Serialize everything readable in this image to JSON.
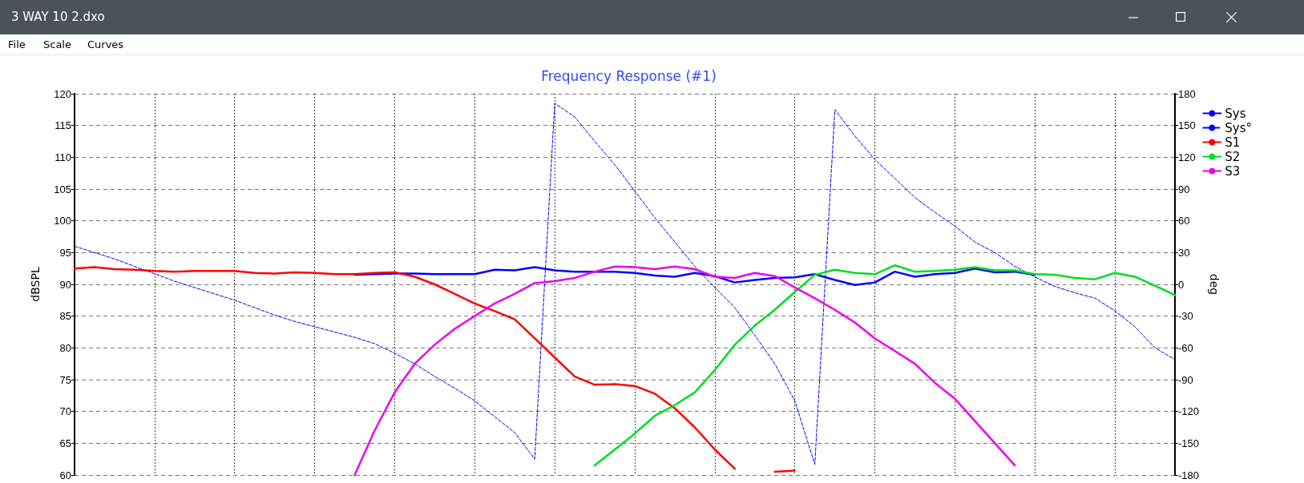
{
  "chart_data": {
    "type": "line",
    "title": "Frequency Response (#1)",
    "ylabel": "dBSPL",
    "y2label": "deg",
    "annotations": [
      "3 WAY 10 2.dxo",
      "File",
      "Scale",
      "Curves"
    ],
    "categories": [
      null,
      null,
      null,
      null,
      null,
      null,
      null,
      null,
      null,
      null,
      null,
      null,
      null,
      null,
      null,
      null,
      null,
      null,
      null,
      null,
      null,
      null,
      null,
      null,
      null,
      null,
      null,
      null,
      null,
      null,
      null,
      null,
      null,
      null,
      null,
      null,
      null,
      null,
      null,
      null,
      null,
      null,
      null,
      null,
      null,
      null,
      null,
      null,
      null,
      null,
      null,
      null,
      null,
      null,
      null,
      null
    ],
    "ylim": [
      60,
      120
    ],
    "yticks": [
      60,
      65,
      70,
      75,
      80,
      85,
      90,
      95,
      100,
      105,
      110,
      115,
      120
    ],
    "y2lim": [
      -180,
      180
    ],
    "y2ticks": [
      -180,
      -150,
      -120,
      -90,
      -60,
      -30,
      0,
      30,
      60,
      90,
      120,
      150,
      180
    ],
    "grid": true,
    "legend": "right",
    "marker": "none",
    "series": [
      {
        "name": "Sys",
        "color": "#0000ff",
        "values": [
          null,
          null,
          null,
          null,
          null,
          null,
          null,
          null,
          null,
          null,
          null,
          null,
          null,
          null,
          91.5,
          91.6,
          91.7,
          91.7,
          91.6,
          91.6,
          91.6,
          92.3,
          92.2,
          92.7,
          92.2,
          92,
          92,
          92,
          91.8,
          91.4,
          91.2,
          91.8,
          91.3,
          90.3,
          90.7,
          91,
          91.1,
          91.6,
          90.7,
          89.9,
          90.3,
          92,
          91.2,
          91.6,
          91.8,
          92.5,
          91.9,
          92,
          91.5,
          null,
          null,
          null,
          null,
          null,
          null,
          null
        ]
      },
      {
        "name": "Sys°",
        "color": "#0000ff",
        "axis": "y2",
        "line_style": "dashed",
        "values": [
          36,
          30,
          24,
          17,
          10,
          3,
          -3,
          -9,
          -15,
          -22,
          -29,
          -35,
          -40,
          -45,
          -50,
          -56,
          -65,
          -75,
          -87,
          -98,
          -110,
          -125,
          -140,
          -165,
          171,
          158,
          135,
          113,
          88,
          63,
          40,
          17,
          -3,
          -22,
          -48,
          -75,
          -110,
          -170,
          165,
          140,
          118,
          100,
          82,
          68,
          55,
          40,
          30,
          17,
          7,
          -2,
          -8,
          -13,
          -25,
          -40,
          -60,
          -71
        ]
      },
      {
        "name": "S1",
        "color": "#ff0000",
        "values": [
          92.5,
          92.7,
          92.4,
          92.3,
          92.1,
          92,
          92.1,
          92.1,
          92.1,
          91.8,
          91.7,
          91.9,
          91.8,
          91.6,
          91.6,
          91.8,
          91.9,
          91.2,
          90,
          88.5,
          87,
          85.8,
          84.5,
          81.5,
          78.5,
          75.5,
          74.2,
          74.3,
          74,
          72.8,
          70.5,
          67.5,
          64,
          61,
          null,
          60.5,
          60.7,
          null,
          null,
          null,
          null,
          null,
          null,
          null,
          null,
          null,
          null,
          null,
          null,
          null,
          null,
          null,
          null,
          null,
          null,
          null
        ]
      },
      {
        "name": "S2",
        "color": "#00dd22",
        "values": [
          null,
          null,
          null,
          null,
          null,
          null,
          null,
          null,
          null,
          null,
          null,
          null,
          null,
          null,
          null,
          null,
          null,
          null,
          null,
          null,
          null,
          null,
          null,
          null,
          null,
          null,
          61.5,
          64,
          66.5,
          69.3,
          71,
          73,
          76.5,
          80.5,
          83.5,
          86,
          88.8,
          91.5,
          92.3,
          91.8,
          91.6,
          93,
          92,
          92.1,
          92.3,
          92.7,
          92.2,
          92.2,
          91.6,
          91.5,
          91,
          90.8,
          91.8,
          91.2,
          89.8,
          88.3
        ]
      },
      {
        "name": "S3",
        "color": "#ee00ee",
        "values": [
          null,
          null,
          null,
          null,
          null,
          null,
          null,
          null,
          null,
          null,
          null,
          null,
          null,
          null,
          60,
          67,
          73,
          77.5,
          80.5,
          83,
          85,
          87,
          88.5,
          90.2,
          90.5,
          91,
          92,
          92.8,
          92.7,
          92.4,
          92.8,
          92.4,
          91.2,
          91,
          91.8,
          91.3,
          89.5,
          87.8,
          86,
          84,
          81.5,
          79.5,
          77.5,
          74.5,
          72,
          68.5,
          65,
          61.5,
          null,
          null,
          null,
          null,
          null,
          null,
          null,
          null
        ]
      }
    ]
  }
}
